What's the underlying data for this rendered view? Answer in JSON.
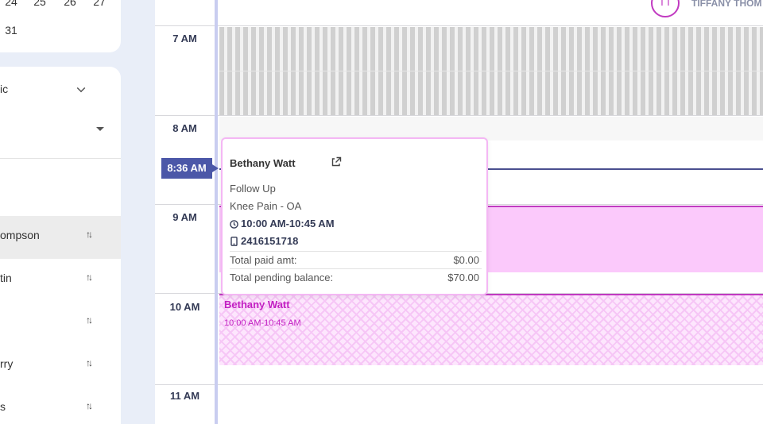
{
  "mini_calendar": {
    "row1": [
      "24",
      "25",
      "26",
      "27"
    ],
    "row2": [
      "31"
    ]
  },
  "filters": {
    "location_label": "ic"
  },
  "providers": [
    {
      "name": "ompson",
      "selected": true
    },
    {
      "name": "tin",
      "selected": false
    },
    {
      "name": "",
      "selected": false
    },
    {
      "name": "rry",
      "selected": false
    },
    {
      "name": "s",
      "selected": false
    }
  ],
  "calendar": {
    "hours": [
      "7 AM",
      "8 AM",
      "9 AM",
      "10 AM",
      "11 AM"
    ],
    "current_time": "8:36 AM",
    "provider_header": {
      "initials": "TT",
      "name": "TIFFANY THOM"
    },
    "event": {
      "patient": "Bethany Watt",
      "time": "10:00 AM-10:45 AM"
    }
  },
  "popover": {
    "patient": "Bethany Watt",
    "visit_type": "Follow Up",
    "reason": "Knee Pain - OA",
    "time": "10:00 AM-10:45 AM",
    "phone": "2416151718",
    "paid_label": "Total paid amt:",
    "paid_value": "$0.00",
    "pending_label": "Total pending balance:",
    "pending_value": "$70.00"
  },
  "colors": {
    "accent": "#4b57a8",
    "appointment": "#c13ac1",
    "appointment_fill": "#fbc9fb"
  }
}
